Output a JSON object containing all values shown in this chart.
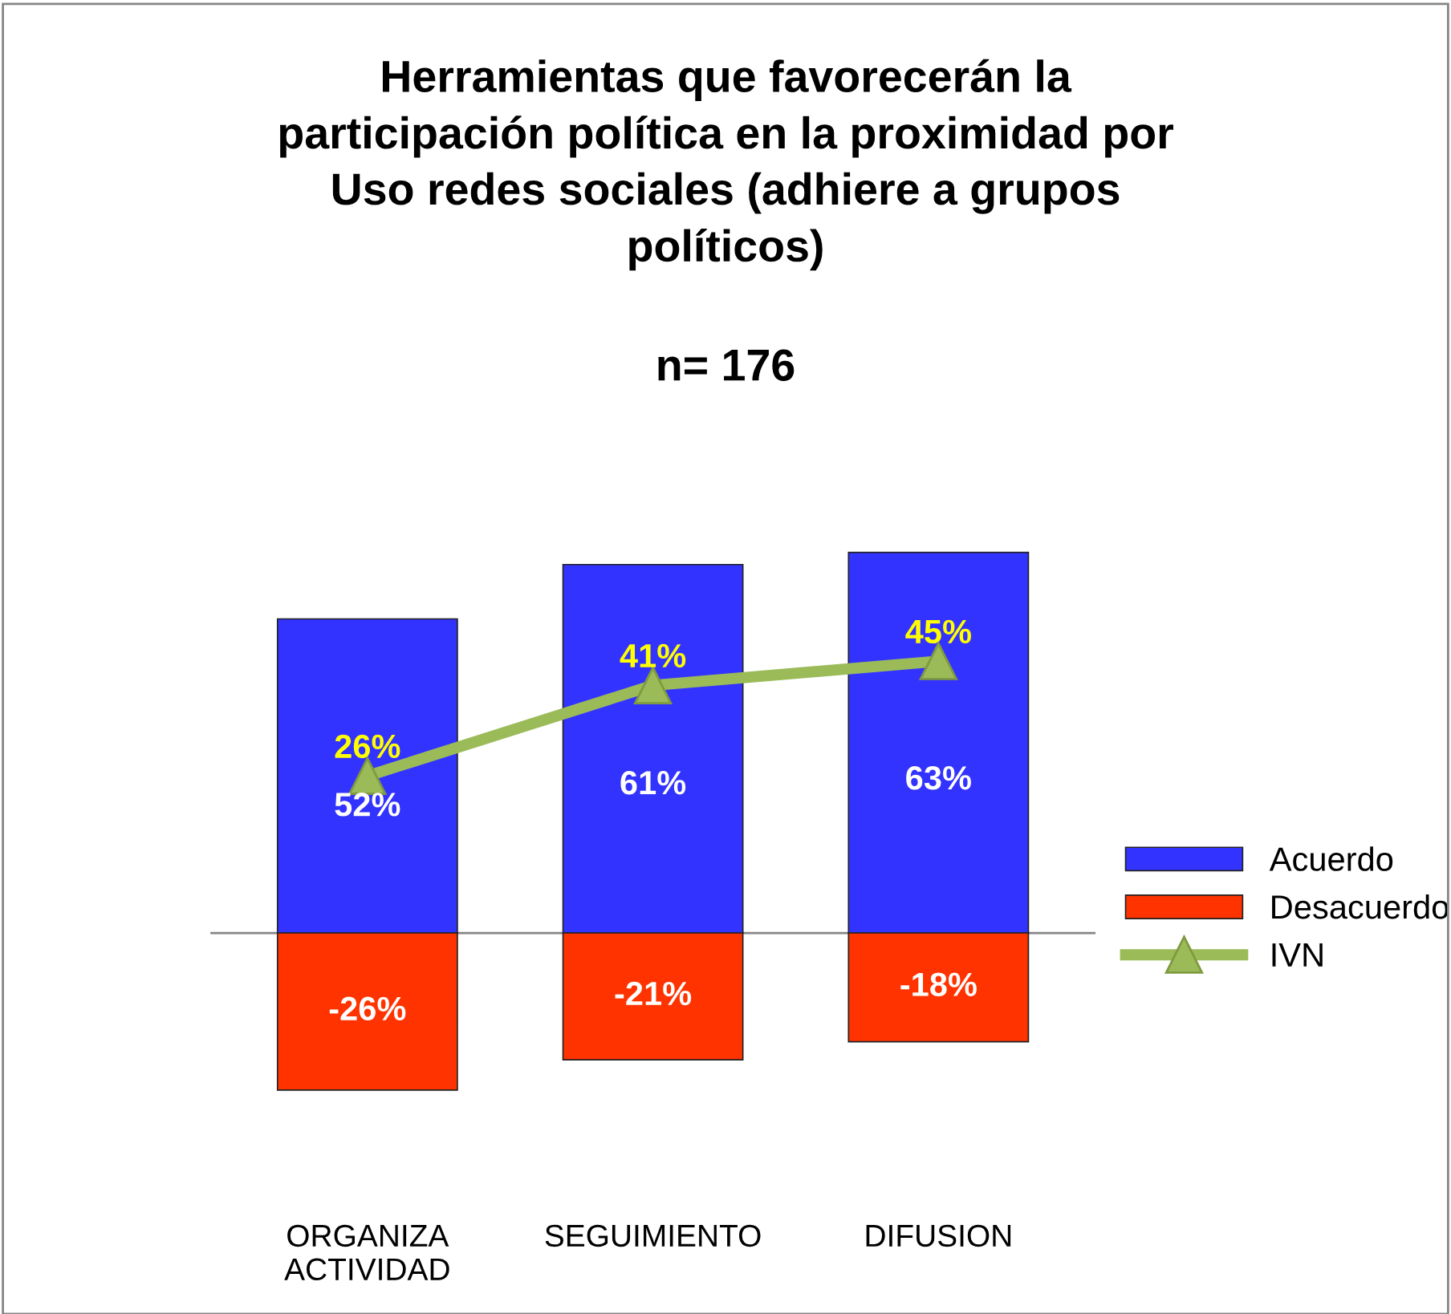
{
  "chart_data": {
    "type": "bar",
    "title": "Herramientas que favorecerán la\nparticipación política en la proximidad por\nUso redes sociales (adhiere a grupos\npolíticos)",
    "subtitle": "n= 176",
    "categories": [
      "ORGANIZA\nACTIVIDAD",
      "SEGUIMIENTO",
      "DIFUSION"
    ],
    "stacked": true,
    "legend": "right",
    "grid": false,
    "series": [
      {
        "name": "Acuerdo",
        "color": "#3333ff",
        "values": [
          52,
          61,
          63
        ],
        "value_labels": [
          "52%",
          "61%",
          "63%"
        ]
      },
      {
        "name": "Desacuerdo",
        "color": "#ff3300",
        "values": [
          -26,
          -21,
          -18
        ],
        "value_labels": [
          "-26%",
          "-21%",
          "-18%"
        ]
      },
      {
        "name": "IVN",
        "type": "line",
        "color": "#9bbb59",
        "marker": "triangle",
        "values": [
          26,
          41,
          45
        ],
        "value_labels": [
          "26%",
          "41%",
          "45%"
        ]
      }
    ]
  }
}
